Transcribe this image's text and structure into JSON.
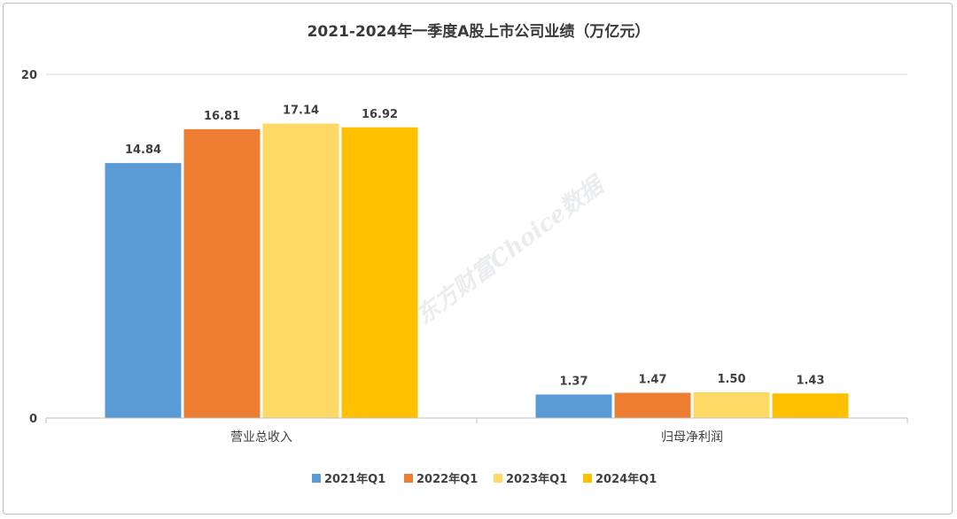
{
  "chart_data": {
    "type": "bar",
    "title": "2021-2024年一季度A股上市公司业绩（万亿元）",
    "categories": [
      "营业总收入",
      "归母净利润"
    ],
    "series": [
      {
        "name": "2021年Q1",
        "color": "#5b9bd5",
        "values": [
          14.84,
          1.37
        ],
        "labels": [
          "14.84",
          "1.37"
        ]
      },
      {
        "name": "2022年Q1",
        "color": "#ed7d31",
        "values": [
          16.81,
          1.47
        ],
        "labels": [
          "16.81",
          "1.47"
        ]
      },
      {
        "name": "2023年Q1",
        "color": "#ffd966",
        "values": [
          17.14,
          1.5
        ],
        "labels": [
          "17.14",
          "1.50"
        ]
      },
      {
        "name": "2024年Q1",
        "color": "#ffc000",
        "values": [
          16.92,
          1.43
        ],
        "labels": [
          "16.92",
          "1.43"
        ]
      }
    ],
    "yticks": [
      "0",
      "20"
    ],
    "ylim": [
      0,
      20
    ],
    "xlabel": "",
    "ylabel": "",
    "legend_position": "bottom-center",
    "watermark": "东方财富Choice数据"
  }
}
